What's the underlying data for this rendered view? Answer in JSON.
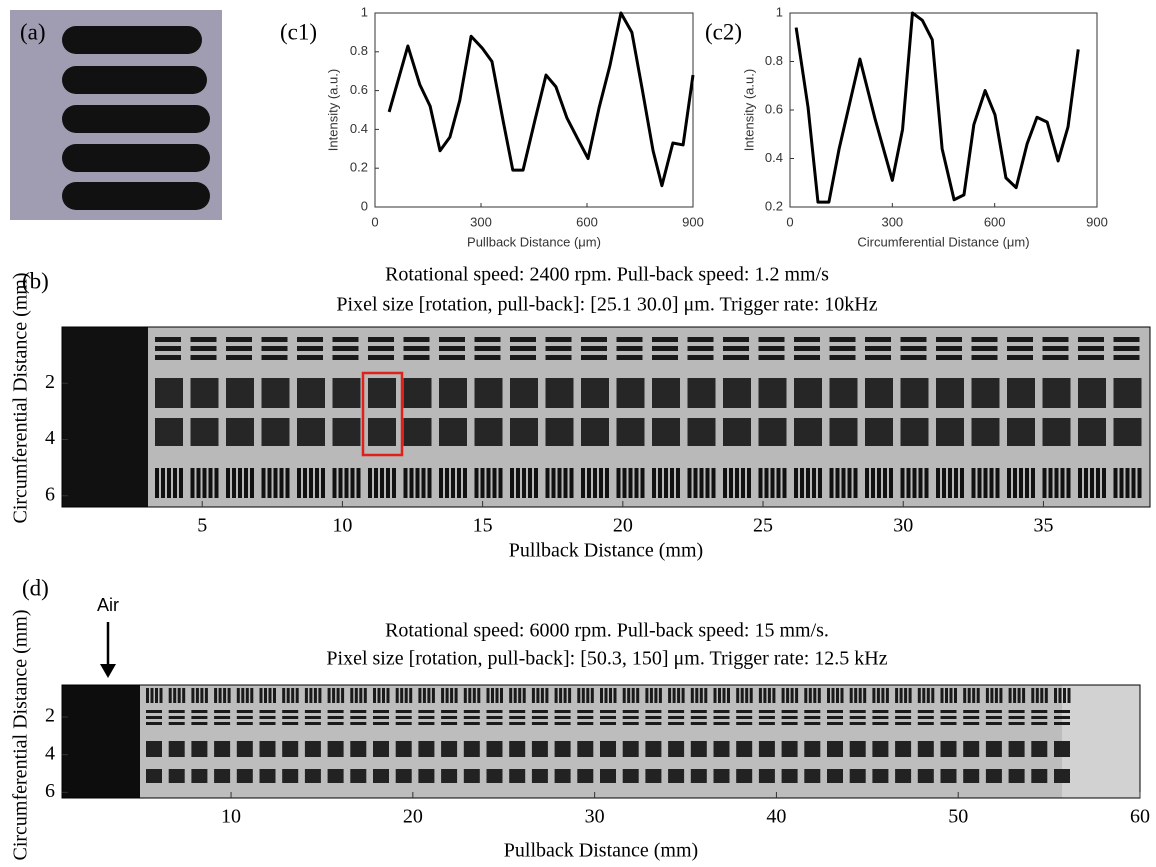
{
  "photo": {
    "panel_label": "(a)"
  },
  "chart_data": [
    {
      "type": "line",
      "panel_label": "(c1)",
      "x_label": "Pullback Distance (μm)",
      "y_label": "Intensity (a.u.)",
      "x": [
        40,
        93,
        127,
        156,
        184,
        212,
        240,
        272,
        303,
        331,
        362,
        390,
        419,
        453,
        484,
        512,
        543,
        574,
        603,
        634,
        665,
        696,
        727,
        756,
        787,
        812,
        843,
        872,
        900
      ],
      "values": [
        0.49,
        0.83,
        0.63,
        0.52,
        0.29,
        0.36,
        0.55,
        0.88,
        0.82,
        0.75,
        0.45,
        0.19,
        0.19,
        0.45,
        0.68,
        0.62,
        0.46,
        0.35,
        0.25,
        0.51,
        0.73,
        1,
        0.9,
        0.61,
        0.29,
        0.11,
        0.33,
        0.32,
        0.68
      ],
      "color": "#000000",
      "xlim": [
        0,
        900
      ],
      "xticks": [
        0,
        300,
        600,
        900
      ],
      "ylim": [
        0,
        1
      ],
      "yticks": [
        0,
        0.2,
        0.4,
        0.6,
        0.8,
        1
      ]
    },
    {
      "type": "line",
      "panel_label": "(c2)",
      "x_label": "Circumferential Distance (μm)",
      "y_label": "Intensity (a.u.)",
      "x": [
        18,
        53,
        82,
        114,
        144,
        205,
        250,
        300,
        330,
        359,
        388,
        417,
        446,
        481,
        510,
        539,
        572,
        601,
        633,
        663,
        695,
        724,
        754,
        786,
        815,
        845
      ],
      "values": [
        0.94,
        0.61,
        0.22,
        0.22,
        0.44,
        0.81,
        0.56,
        0.31,
        0.52,
        1,
        0.97,
        0.89,
        0.44,
        0.23,
        0.25,
        0.54,
        0.68,
        0.58,
        0.32,
        0.28,
        0.46,
        0.57,
        0.55,
        0.39,
        0.53,
        0.85
      ],
      "color": "#000000",
      "xlim": [
        0,
        900
      ],
      "xticks": [
        0,
        300,
        600,
        900
      ],
      "ylim": [
        0.2,
        1
      ],
      "yticks": [
        0.2,
        0.4,
        0.6,
        0.8,
        1
      ]
    },
    {
      "type": "image",
      "panel_label": "(b)",
      "title_lines": [
        "Rotational speed: 2400 rpm. Pull-back speed: 1.2 mm/s",
        "Pixel size [rotation, pull-back]: [25.1 30.0] μm. Trigger rate: 10kHz"
      ],
      "x_label": "Pullback Distance (mm)",
      "y_label": "Circumferential Distance (mm)",
      "xlim": [
        0,
        38.8
      ],
      "xticks": [
        5,
        10,
        15,
        20,
        25,
        30,
        35
      ],
      "ylim": [
        0,
        6.4
      ],
      "yticks": [
        2,
        4,
        6
      ],
      "y_reversed": true
    },
    {
      "type": "image",
      "panel_label": "(d)",
      "title_lines": [
        "Rotational speed: 6000 rpm. Pull-back speed: 15 mm/s.",
        "Pixel size [rotation, pull-back]: [50.3, 150] μm. Trigger rate: 12.5 kHz"
      ],
      "x_label": "Pullback Distance (mm)",
      "y_label": "Circumferential Distance (mm)",
      "annotations": [
        {
          "text": "Air"
        }
      ],
      "xlim": [
        0.7,
        60
      ],
      "xticks": [
        10,
        20,
        30,
        40,
        50,
        60
      ],
      "ylim": [
        0.3,
        6.3
      ],
      "yticks": [
        2,
        4,
        6
      ],
      "y_reversed": true
    }
  ]
}
